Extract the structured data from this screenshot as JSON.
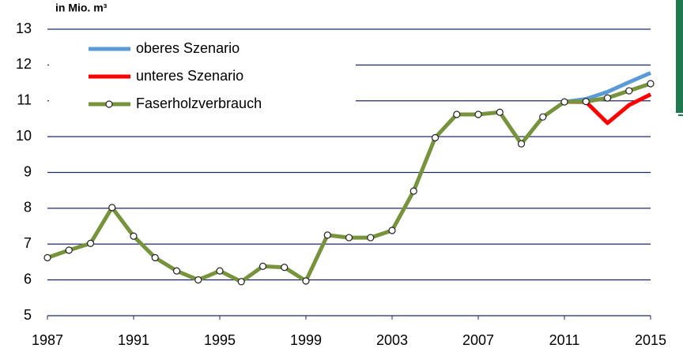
{
  "chart_data": {
    "type": "line",
    "axis_label": "in Mio. m³",
    "x": [
      1987,
      1988,
      1989,
      1990,
      1991,
      1992,
      1993,
      1994,
      1995,
      1996,
      1997,
      1998,
      1999,
      2000,
      2001,
      2002,
      2003,
      2004,
      2005,
      2006,
      2007,
      2008,
      2009,
      2010,
      2011,
      2012,
      2013,
      2014,
      2015
    ],
    "series": [
      {
        "name": "oberes Szenario",
        "color": "#5b9bd5",
        "markers": false,
        "values": [
          null,
          null,
          null,
          null,
          null,
          null,
          null,
          null,
          null,
          null,
          null,
          null,
          null,
          null,
          null,
          null,
          null,
          null,
          null,
          null,
          null,
          null,
          null,
          null,
          10.97,
          11.05,
          11.25,
          11.52,
          11.78
        ]
      },
      {
        "name": "unteres Szenario",
        "color": "#ff0000",
        "markers": false,
        "values": [
          null,
          null,
          null,
          null,
          null,
          null,
          null,
          null,
          null,
          null,
          null,
          null,
          null,
          null,
          null,
          null,
          null,
          null,
          null,
          null,
          null,
          null,
          null,
          null,
          10.97,
          10.97,
          10.38,
          10.88,
          11.18
        ]
      },
      {
        "name": "Faserholzverbrauch",
        "color": "#77933c",
        "markers": true,
        "values": [
          6.62,
          6.83,
          7.02,
          8.02,
          7.22,
          6.62,
          6.25,
          6.0,
          6.25,
          5.95,
          6.38,
          6.35,
          5.97,
          7.25,
          7.18,
          7.18,
          7.38,
          8.48,
          9.97,
          10.62,
          10.62,
          10.68,
          9.8,
          10.55,
          10.97,
          10.98,
          11.08,
          11.28,
          11.48
        ]
      }
    ],
    "xlim": [
      1987,
      2015
    ],
    "xticks": [
      1987,
      1991,
      1995,
      1999,
      2003,
      2007,
      2011,
      2015
    ],
    "ylim": [
      5,
      13
    ],
    "yticks": [
      5,
      6,
      7,
      8,
      9,
      10,
      11,
      12,
      13
    ],
    "grid": true,
    "legend": "upper left"
  }
}
